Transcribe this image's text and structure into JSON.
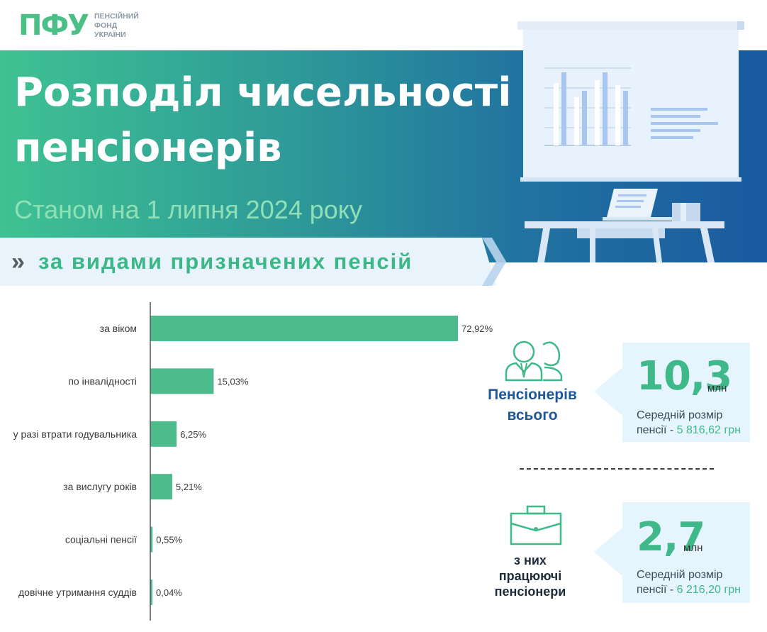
{
  "logo": {
    "mark": "ПФУ",
    "line1": "ПЕНСІЙНИЙ",
    "line2": "ФОНД",
    "line3": "УКРАЇНИ"
  },
  "header": {
    "title_line1": "Розподіл чисельності",
    "title_line2": "пенсіонерів",
    "subtitle": "Станом на 1 липня 2024 року",
    "section_arrow": "»",
    "section_label": "за видами призначених пенсій"
  },
  "chart_data": {
    "type": "bar",
    "orientation": "horizontal",
    "categories": [
      "за віком",
      "по інвалідності",
      "у разі втрати годувальника",
      "за вислугу років",
      "соціальні пенсії",
      "довічне утримання суддів"
    ],
    "values": [
      72.92,
      15.03,
      6.25,
      5.21,
      0.55,
      0.04
    ],
    "value_labels": [
      "72,92%",
      "15,03%",
      "6,25%",
      "5,21%",
      "0,55%",
      "0,04%"
    ],
    "unit": "%",
    "bar_color": "#4dbb8b",
    "xlim": [
      0,
      75
    ]
  },
  "stats": {
    "total": {
      "title_line1": "Пенсіонерів",
      "title_line2": "всього",
      "number": "10,3",
      "unit": "млн",
      "desc_line1": "Середній розмір",
      "desc_prefix": "пенсії - ",
      "desc_amount": "5 816,62 грн"
    },
    "working": {
      "title_line1": "з них",
      "title_line2": "працюючі",
      "title_line3": "пенсіонери",
      "number": "2,7",
      "unit": "млн",
      "desc_line1": "Середній розмір",
      "desc_prefix": "пенсії - ",
      "desc_amount": "6 216,20 грн"
    }
  },
  "colors": {
    "accent_green": "#3fb98a",
    "header_blue": "#1f5799",
    "stat_box_bg": "#e6f4fd"
  }
}
